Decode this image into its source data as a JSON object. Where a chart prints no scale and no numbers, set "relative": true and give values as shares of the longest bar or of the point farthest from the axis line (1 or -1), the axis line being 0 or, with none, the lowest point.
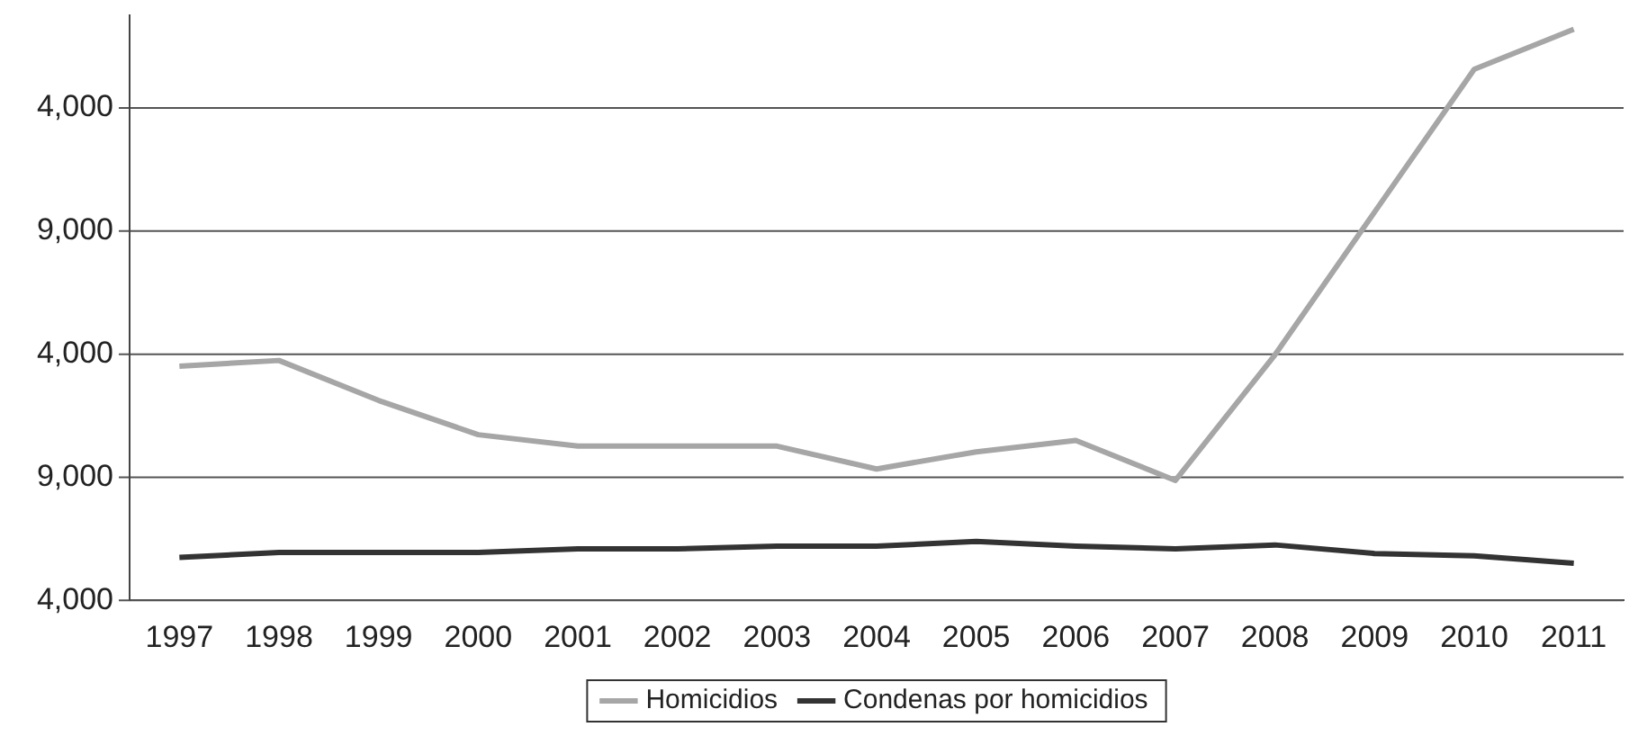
{
  "chart_data": {
    "type": "line",
    "relative": true,
    "categories": [
      "1997",
      "1998",
      "1999",
      "2000",
      "2001",
      "2002",
      "2003",
      "2004",
      "2005",
      "2006",
      "2007",
      "2008",
      "2009",
      "2010",
      "2011"
    ],
    "series": [
      {
        "name": "Homicidios",
        "color": "#a6a6a6",
        "values": [
          0.41,
          0.42,
          0.35,
          0.29,
          0.27,
          0.27,
          0.27,
          0.23,
          0.26,
          0.28,
          0.21,
          0.43,
          0.68,
          0.93,
          1
        ]
      },
      {
        "name": "Condenas por homicidios",
        "color": "#333333",
        "values": [
          0.075,
          0.084,
          0.084,
          0.084,
          0.09,
          0.09,
          0.095,
          0.095,
          0.103,
          0.095,
          0.09,
          0.097,
          0.082,
          0.078,
          0.065
        ]
      }
    ],
    "annotations": [
      "4,000",
      "9,000",
      "4,000",
      "9,000",
      "4,000"
    ],
    "legend": "bottom",
    "marker": "none",
    "line_style": "solid"
  }
}
